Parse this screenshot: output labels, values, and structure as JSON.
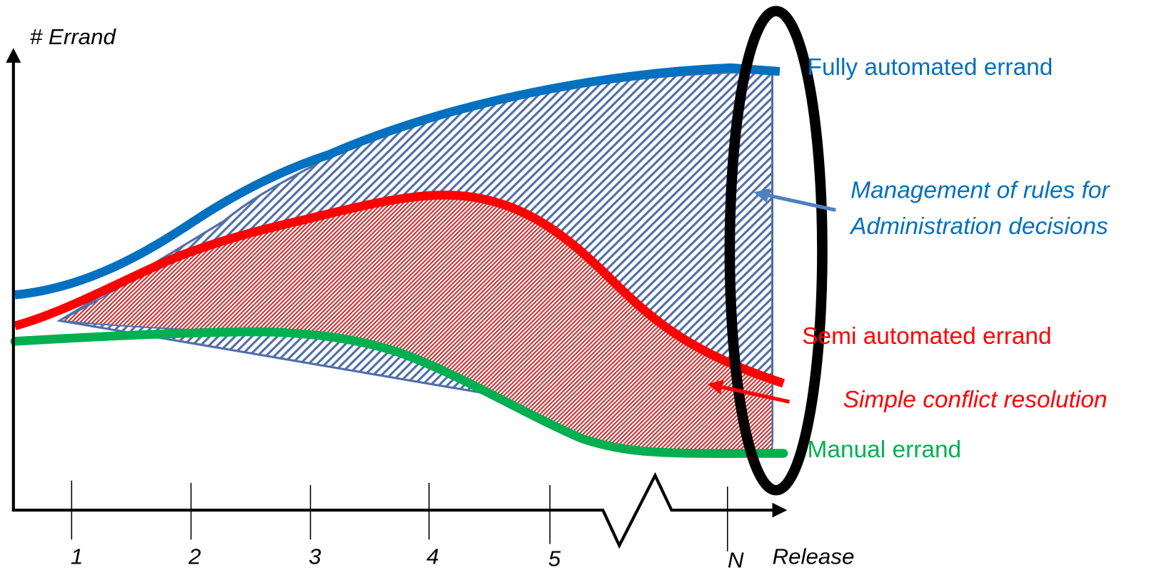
{
  "y_axis_label": "# Errand",
  "x_axis_label": "Release",
  "x_ticks": [
    "1",
    "2",
    "3",
    "4",
    "5",
    "N"
  ],
  "series_labels": {
    "fully": "Fully automated errand",
    "semi": "Semi automated errand",
    "manual": "Manual errand"
  },
  "annotations": {
    "rules_line1": "Management of rules for",
    "rules_line2": "Administration decisions",
    "conflict": "Simple conflict resolution"
  }
}
